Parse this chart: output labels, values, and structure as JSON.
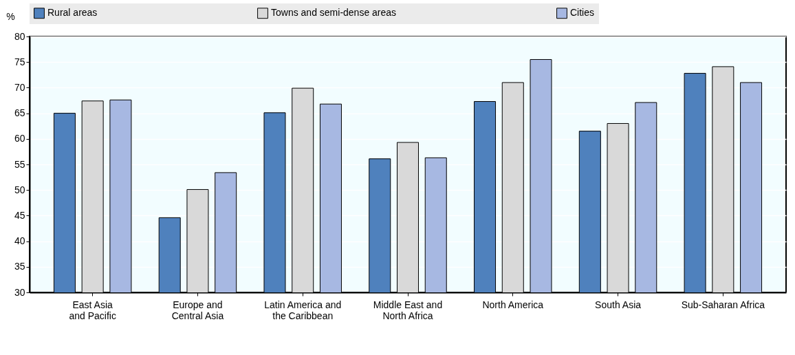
{
  "chart_data": {
    "type": "bar",
    "ylabel": "%",
    "categories": [
      "East Asia\nand Pacific",
      "Europe and\nCentral Asia",
      "Latin America and\nthe Caribbean",
      "Middle East and\nNorth Africa",
      "North America",
      "South Asia",
      "Sub-Saharan Africa"
    ],
    "series": [
      {
        "name": "Rural areas",
        "color": "#4f81bd",
        "values": [
          65.0,
          44.6,
          65.1,
          56.1,
          67.3,
          61.5,
          72.8
        ]
      },
      {
        "name": "Towns and semi-dense areas",
        "color": "#d9d9d9",
        "values": [
          67.4,
          50.1,
          69.9,
          59.3,
          71.0,
          63.0,
          74.1
        ]
      },
      {
        "name": "Cities",
        "color": "#a7b8e2",
        "values": [
          67.6,
          53.4,
          66.8,
          56.3,
          75.5,
          67.1,
          71.0
        ]
      }
    ],
    "ylim": [
      30,
      80
    ],
    "yticks": [
      30,
      35,
      40,
      45,
      50,
      55,
      60,
      65,
      70,
      75,
      80
    ],
    "grid": "y",
    "legend": "top"
  }
}
